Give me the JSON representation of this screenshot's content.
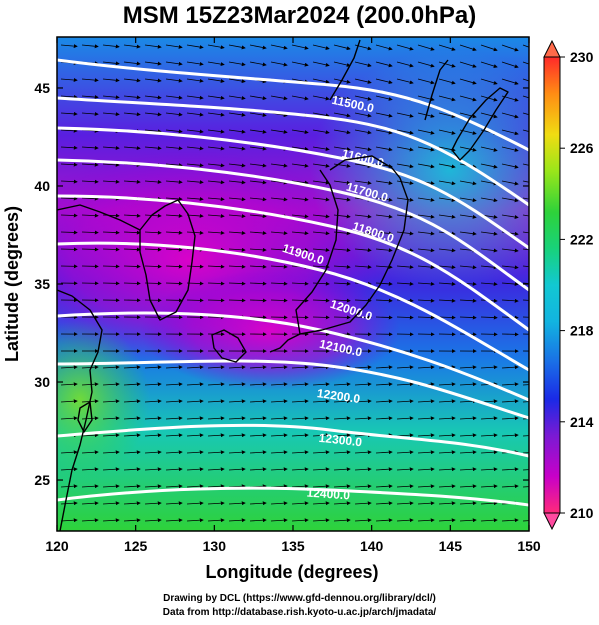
{
  "title": "MSM 15Z23Mar2024 (200.0hPa)",
  "map": {
    "xlabel": "Longitude (degrees)",
    "ylabel": "Latitude  (degrees)",
    "x_ticks": [
      "120",
      "125",
      "130",
      "135",
      "140",
      "145",
      "150"
    ],
    "y_ticks": [
      "25",
      "30",
      "35",
      "40",
      "45"
    ],
    "lon_range": [
      120,
      150
    ],
    "lat_range": [
      22.4,
      47.6
    ],
    "contour_labels": [
      "11500.0",
      "11600.0",
      "11700.0",
      "11800.0",
      "11900.0",
      "12000.0",
      "12100.0",
      "12200.0",
      "12300.0",
      "12400.0"
    ]
  },
  "colorbar": {
    "min": 210,
    "max": 230,
    "tick_labels": [
      "230",
      "226",
      "222",
      "218",
      "214",
      "210"
    ],
    "colors": [
      "#ff2a7a",
      "#c800c8",
      "#7a1ad4",
      "#1a2ae6",
      "#1a6ee6",
      "#12c8d2",
      "#18d27a",
      "#2ed23a",
      "#9ae61a",
      "#f0dc12",
      "#ff8c14",
      "#ff3c14",
      "#ff2a2a"
    ]
  },
  "credits": {
    "line1": "Drawing by DCL (https://www.gfd-dennou.org/library/dcl/)",
    "line2": "Data from http://database.rish.kyoto-u.ac.jp/arch/jmadata/"
  }
}
